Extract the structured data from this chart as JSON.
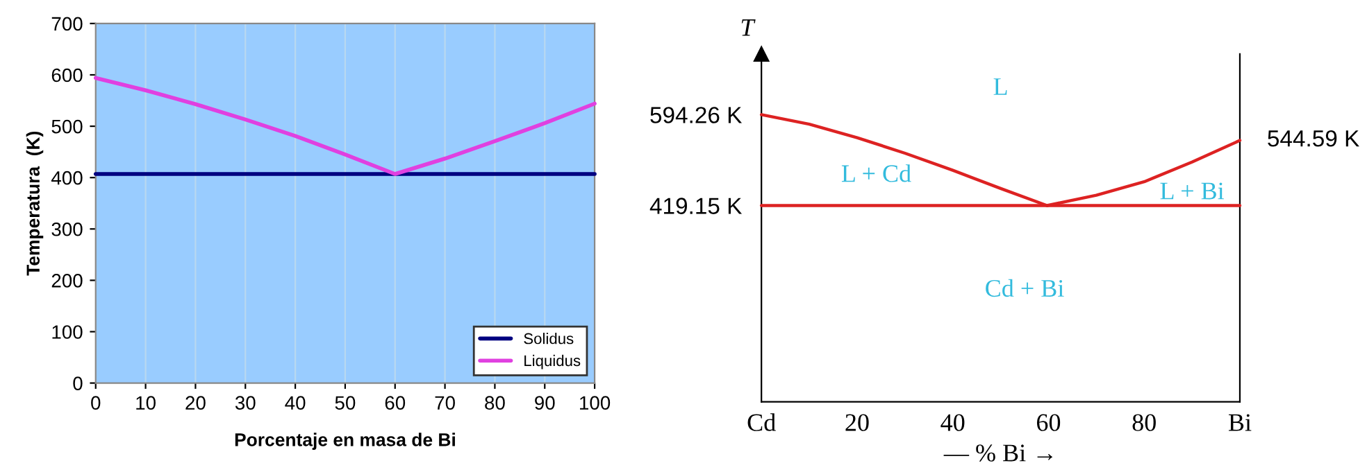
{
  "chart_data": [
    {
      "type": "line",
      "xlabel": "Porcentaje en masa de Bi",
      "ylabel": "Temperatura  (K)",
      "xlim": [
        0,
        100
      ],
      "ylim": [
        0,
        700
      ],
      "xticks": [
        0,
        10,
        20,
        30,
        40,
        50,
        60,
        70,
        80,
        90,
        100
      ],
      "yticks": [
        0,
        100,
        200,
        300,
        400,
        500,
        600,
        700
      ],
      "grid": "x",
      "legend": "bottom right",
      "series": [
        {
          "name": "Solidus",
          "color": "#000080",
          "x": [
            0,
            100
          ],
          "values": [
            407,
            407
          ]
        },
        {
          "name": "Liquidus",
          "color": "#e040e0",
          "x": [
            0,
            10,
            20,
            30,
            40,
            50,
            60,
            70,
            80,
            90,
            100
          ],
          "values": [
            594,
            570,
            543,
            513,
            481,
            445,
            407,
            437,
            471,
            506,
            544
          ]
        }
      ]
    },
    {
      "type": "line",
      "ylabel": "T",
      "xlabel": "— % Bi →",
      "xlim": [
        0,
        100
      ],
      "ylim": [
        41,
        711
      ],
      "xticks": [
        {
          "value": 0,
          "label": "Cd"
        },
        20,
        40,
        60,
        80,
        {
          "value": 100,
          "label": "Bi"
        }
      ],
      "yticks": [
        {
          "value": 594.26,
          "label": "594.26 K"
        },
        {
          "value": 419.15,
          "label": "419.15 K"
        }
      ],
      "grid": false,
      "legend": false,
      "annotations": [
        "L",
        "L + Cd",
        "L + Bi",
        "Cd + Bi",
        {
          "text": "544.59 K",
          "x": 100,
          "y": 544.59
        }
      ],
      "series": [
        {
          "color": "#dd2222",
          "x": [
            0,
            100
          ],
          "values": [
            419.15,
            419.15
          ]
        },
        {
          "color": "#dd2222",
          "x": [
            0,
            10,
            20,
            30,
            40,
            50,
            59.7
          ],
          "values": [
            594.26,
            576,
            550,
            520,
            487,
            452,
            419.15
          ]
        },
        {
          "color": "#dd2222",
          "x": [
            59.7,
            70,
            80,
            90,
            100
          ],
          "values": [
            419.15,
            439,
            465,
            503,
            544.59
          ]
        }
      ]
    }
  ]
}
